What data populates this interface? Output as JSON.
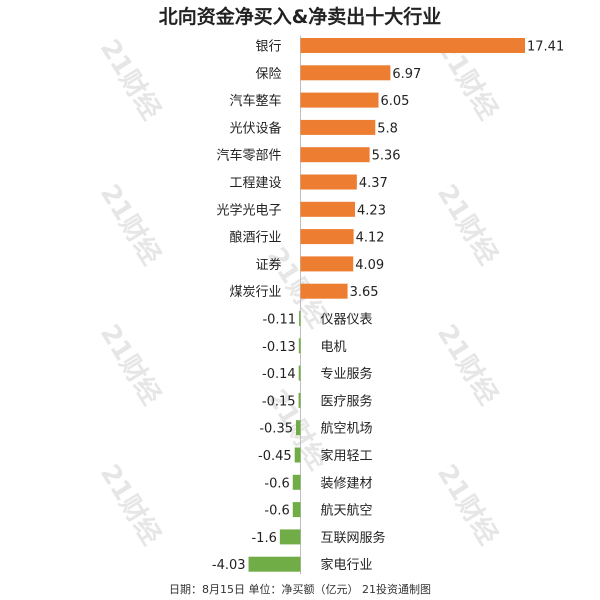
{
  "chart_data": {
    "type": "bar",
    "orientation": "horizontal",
    "title": "北向资金净买入&净卖出十大行业",
    "categories": [
      "银行",
      "保险",
      "汽车整车",
      "光伏设备",
      "汽车零部件",
      "工程建设",
      "光学光电子",
      "酿酒行业",
      "证券",
      "煤炭行业",
      "仪器仪表",
      "电机",
      "专业服务",
      "医疗服务",
      "航空机场",
      "家用轻工",
      "装修建材",
      "航天航空",
      "互联网服务",
      "家电行业"
    ],
    "values": [
      17.41,
      6.97,
      6.05,
      5.8,
      5.36,
      4.37,
      4.23,
      4.12,
      4.09,
      3.65,
      -0.11,
      -0.13,
      -0.14,
      -0.15,
      -0.35,
      -0.45,
      -0.6,
      -0.6,
      -1.6,
      -4.03
    ],
    "value_labels": [
      "17.41",
      "6.97",
      "6.05",
      "5.8",
      "5.36",
      "4.37",
      "4.23",
      "4.12",
      "4.09",
      "3.65",
      "-0.11",
      "-0.13",
      "-0.14",
      "-0.15",
      "-0.35",
      "-0.45",
      "-0.6",
      "-0.6",
      "-1.6",
      "-4.03"
    ],
    "colors": {
      "positive": "#ED7D31",
      "negative": "#70AD47"
    },
    "xlim": [
      -4.03,
      17.41
    ],
    "grid": false,
    "legend": "none"
  },
  "footer": "日期：8月15日 单位：净买额（亿元） 21投资通制图",
  "watermark": "21财经"
}
